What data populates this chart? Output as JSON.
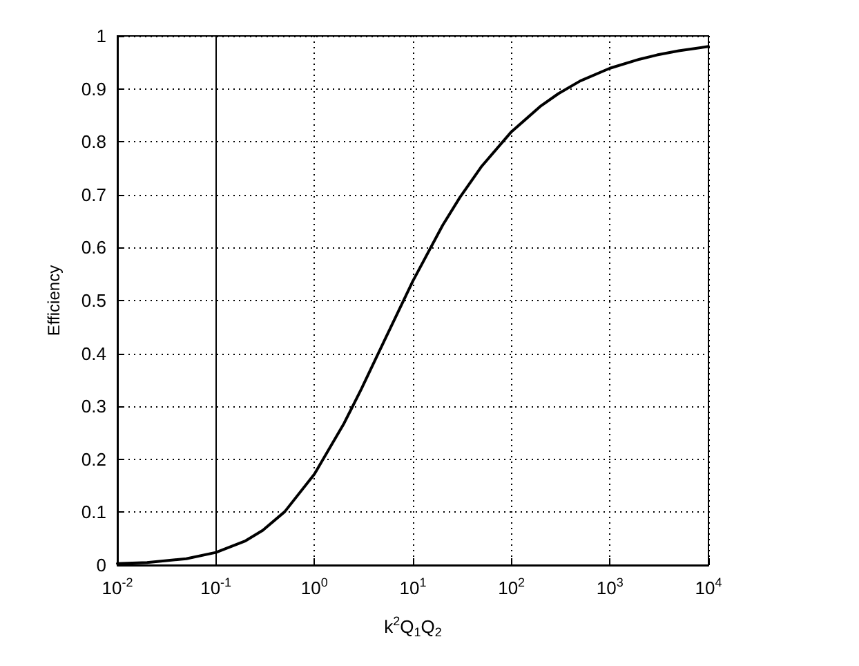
{
  "chart_data": {
    "type": "line",
    "xlabel": "k$^{2}$Q$_{1}$Q$_{2}$",
    "ylabel": "Efficiency",
    "log": "x",
    "x": [
      0.01,
      0.02,
      0.05,
      0.1,
      0.2,
      0.3,
      0.5,
      1,
      2,
      3,
      5,
      10,
      20,
      30,
      50,
      100,
      200,
      300,
      500,
      1000,
      2000,
      3000,
      5000,
      10000
    ],
    "series": [
      {
        "color": "#000000",
        "values": [
          0.003,
          0.005,
          0.012,
          0.024,
          0.046,
          0.066,
          0.101,
          0.172,
          0.268,
          0.333,
          0.42,
          0.537,
          0.642,
          0.695,
          0.754,
          0.819,
          0.868,
          0.891,
          0.915,
          0.939,
          0.956,
          0.964,
          0.972,
          0.98
        ]
      }
    ],
    "xlim": [
      0.01,
      10000
    ],
    "xticks": [
      {
        "value": 0.01,
        "label": "10$^{-2}$"
      },
      {
        "value": 0.1,
        "label": "10$^{-1}$"
      },
      {
        "value": 1,
        "label": "10$^{0}$"
      },
      {
        "value": 10,
        "label": "10$^{1}$"
      },
      {
        "value": 100,
        "label": "10$^{2}$"
      },
      {
        "value": 1000,
        "label": "10$^{3}$"
      },
      {
        "value": 10000,
        "label": "10$^{4}$"
      }
    ],
    "ylim": [
      0,
      1
    ],
    "yticks": [
      0,
      0.1,
      0.2,
      0.3,
      0.4,
      0.5,
      0.6,
      0.7,
      0.8,
      0.9,
      1
    ],
    "grid": true,
    "line_style": "solid",
    "marker": "none",
    "ref_lines": [
      {
        "axis": "x",
        "value": 0.1,
        "color": "#000000",
        "line_style": "solid"
      }
    ]
  }
}
